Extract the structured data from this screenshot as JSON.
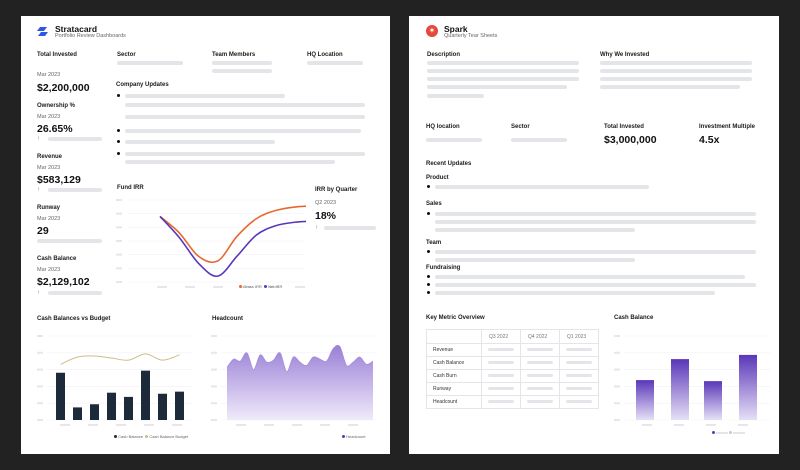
{
  "colors": {
    "background": "#222222",
    "stratacard_logo": "#2f57e6",
    "spark_logo": "#e5483a",
    "orange": "#e8672f",
    "purple": "#5a37b8",
    "olive": "#c9c08a",
    "navy": "#1d2a3a",
    "green": "#2ea56b"
  },
  "left": {
    "app_name": "Stratacard",
    "app_subtitle": "Portfolio Review Dashboards",
    "logo_icon": "stratacard-logo-icon",
    "metrics": [
      {
        "label": "Total Invested",
        "date": "Mar 2023",
        "value": "$2,200,000"
      },
      {
        "label": "Ownership %",
        "date": "Mar 2023",
        "value": "26.65%"
      },
      {
        "label": "Revenue",
        "date": "Mar 2023",
        "value": "$583,129"
      },
      {
        "label": "Runway",
        "date": "Mar 2023",
        "value": "29"
      },
      {
        "label": "Cash Balance",
        "date": "Mar 2023",
        "value": "$2,129,102"
      }
    ],
    "fields": {
      "sector": "Sector",
      "team_members": "Team Members",
      "hq_location": "HQ Location"
    },
    "company_updates": "Company Updates",
    "fund_irr": {
      "title": "Fund IRR",
      "legend": [
        "Gross IRR",
        "Net IRR"
      ]
    },
    "irr_by_quarter": {
      "title": "IRR by Quarter",
      "quarter": "Q2 2023",
      "value": "18%"
    },
    "cash_balances": {
      "title": "Cash Balances vs Budget",
      "legend": [
        "Cash Balance",
        "Cash Balance Budget"
      ]
    },
    "headcount": {
      "title": "Headcount",
      "legend": [
        "Headcount"
      ]
    }
  },
  "right": {
    "app_name": "Spark",
    "app_subtitle": "Quarterly Tear Sheets",
    "logo_icon": "spark-logo-icon",
    "description": "Description",
    "why_we_invested": "Why We Invested",
    "hq_location": "HQ location",
    "sector": "Sector",
    "total_invested": {
      "label": "Total Invested",
      "value": "$3,000,000"
    },
    "investment_multiple": {
      "label": "Investment Multiple",
      "value": "4.5x"
    },
    "recent_updates": "Recent Updates",
    "update_sections": [
      "Product",
      "Sales",
      "Team",
      "Fundraising"
    ],
    "key_metric": {
      "title": "Key Metric Overview",
      "columns": [
        "Q3 2022",
        "Q4 2022",
        "Q1 2023"
      ],
      "rows": [
        "Revenue",
        "Cash Balance",
        "Cash Burn",
        "Runway",
        "Headcount"
      ]
    },
    "cash_balance": {
      "title": "Cash Balance"
    }
  },
  "chart_data": [
    {
      "type": "line",
      "title": "Fund IRR",
      "series": [
        {
          "name": "Gross IRR",
          "values": [
            5.6,
            4.2,
            2.2,
            1.8,
            3.9,
            5.4,
            6.1,
            6.4,
            6.5
          ]
        },
        {
          "name": "Net IRR",
          "values": [
            5.6,
            3.8,
            1.6,
            0.5,
            2.2,
            4.0,
            4.8,
            5.1,
            5.2
          ]
        }
      ],
      "ylim": [
        0,
        7
      ]
    },
    {
      "type": "bar",
      "title": "Cash Balances vs Budget",
      "series": [
        {
          "name": "Cash Balance",
          "values": [
            45,
            12,
            15,
            26,
            22,
            47,
            25,
            27
          ]
        },
        {
          "name": "Cash Balance Budget",
          "values": [
            53,
            60,
            61,
            59,
            57,
            63,
            57,
            62
          ]
        }
      ],
      "ylim": [
        0,
        80
      ]
    },
    {
      "type": "area",
      "title": "Headcount",
      "series": [
        {
          "name": "Headcount",
          "values": [
            50,
            58,
            56,
            64,
            48,
            62,
            55,
            57,
            64,
            46,
            60,
            55,
            52,
            60,
            58,
            56,
            68,
            70,
            52,
            55,
            60,
            53,
            56
          ]
        }
      ],
      "ylim": [
        0,
        80
      ]
    },
    {
      "type": "bar",
      "title": "Cash Balance",
      "series": [
        {
          "name": "Cash Balance",
          "values": [
            38,
            58,
            37,
            62
          ]
        }
      ],
      "ylim": [
        0,
        80
      ]
    }
  ]
}
